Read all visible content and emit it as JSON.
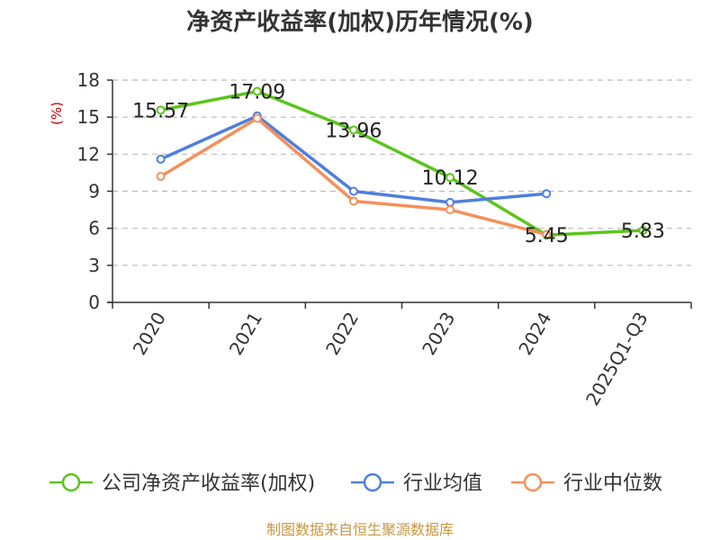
{
  "chart_data": {
    "type": "line",
    "title": "净资产收益率(加权)历年情况(%)",
    "ylabel": "(%)",
    "xlabel": "",
    "ylim": [
      0,
      18
    ],
    "yticks": [
      0,
      3,
      6,
      9,
      12,
      15,
      18
    ],
    "grid": true,
    "legend_position": "bottom",
    "categories": [
      "2020",
      "2021",
      "2022",
      "2023",
      "2024",
      "2025Q1-Q3"
    ],
    "series": [
      {
        "name": "公司净资产收益率(加权)",
        "color": "#5cc41c",
        "values": [
          15.57,
          17.09,
          13.96,
          10.12,
          5.45,
          5.83
        ],
        "labels": [
          "15.57",
          "17.09",
          "13.96",
          "10.12",
          "5.45",
          "5.83"
        ]
      },
      {
        "name": "行业均值",
        "color": "#4f7fdc",
        "values": [
          11.6,
          15.1,
          9.0,
          8.1,
          8.8,
          null
        ]
      },
      {
        "name": "行业中位数",
        "color": "#f5905a",
        "values": [
          10.2,
          14.9,
          8.2,
          7.5,
          5.5,
          null
        ]
      }
    ]
  },
  "source": "制图数据来自恒生聚源数据库"
}
